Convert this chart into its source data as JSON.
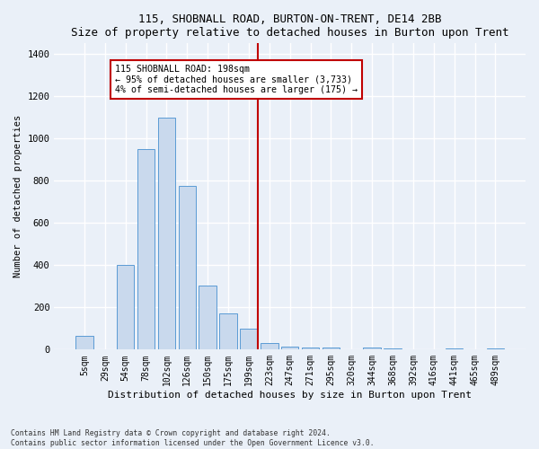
{
  "title": "115, SHOBNALL ROAD, BURTON-ON-TRENT, DE14 2BB",
  "subtitle": "Size of property relative to detached houses in Burton upon Trent",
  "xlabel": "Distribution of detached houses by size in Burton upon Trent",
  "ylabel": "Number of detached properties",
  "footnote1": "Contains HM Land Registry data © Crown copyright and database right 2024.",
  "footnote2": "Contains public sector information licensed under the Open Government Licence v3.0.",
  "bar_labels": [
    "5sqm",
    "29sqm",
    "54sqm",
    "78sqm",
    "102sqm",
    "126sqm",
    "150sqm",
    "175sqm",
    "199sqm",
    "223sqm",
    "247sqm",
    "271sqm",
    "295sqm",
    "320sqm",
    "344sqm",
    "368sqm",
    "392sqm",
    "416sqm",
    "441sqm",
    "465sqm",
    "489sqm"
  ],
  "bar_values": [
    65,
    0,
    400,
    950,
    1100,
    775,
    305,
    170,
    100,
    30,
    15,
    10,
    10,
    0,
    10,
    5,
    0,
    0,
    5,
    0,
    5
  ],
  "bar_color": "#c9d9ed",
  "bar_edge_color": "#5b9bd5",
  "ylim": [
    0,
    1450
  ],
  "yticks": [
    0,
    200,
    400,
    600,
    800,
    1000,
    1200,
    1400
  ],
  "vline_x_index": 8,
  "vline_color": "#c00000",
  "annotation_text": "115 SHOBNALL ROAD: 198sqm\n← 95% of detached houses are smaller (3,733)\n4% of semi-detached houses are larger (175) →",
  "bg_color": "#eaf0f8",
  "grid_color": "#ffffff"
}
